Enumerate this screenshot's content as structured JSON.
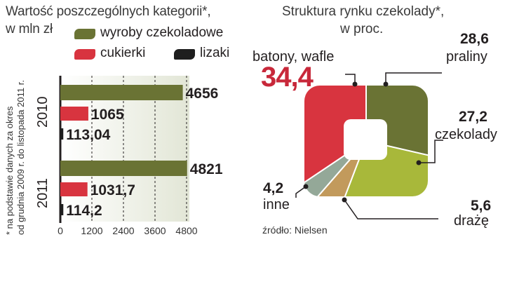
{
  "left": {
    "title_line1": "Wartość poszczególnych kategorii*,",
    "title_line2": "w mln zł",
    "note_line1": "* na podstawie danych za okres",
    "note_line2": "od grudnia 2009 r. do listopada 2011 r.",
    "legend": [
      {
        "name": "wyroby czekoladowe",
        "color": "#6a7334"
      },
      {
        "name": "cukierki",
        "color": "#d8343f"
      },
      {
        "name": "lizaki",
        "color": "#1e1e1e"
      }
    ]
  },
  "right": {
    "title_line1": "Struktura rynku czekolady*,",
    "title_line2": "w proc.",
    "source": "źródło: Nielsen"
  },
  "chart_data": [
    {
      "type": "bar",
      "orientation": "horizontal",
      "title": "Wartość poszczególnych kategorii*, w mln zł",
      "categories": [
        "2010",
        "2011"
      ],
      "series": [
        {
          "name": "wyroby czekoladowe",
          "values": [
            4656,
            4821
          ],
          "labels": [
            "4656",
            "4821"
          ]
        },
        {
          "name": "cukierki",
          "values": [
            1065,
            1031.7
          ],
          "labels": [
            "1065",
            "1031,7"
          ]
        },
        {
          "name": "lizaki",
          "values": [
            113.04,
            114.2
          ],
          "labels": [
            "113,04",
            "114,2"
          ]
        }
      ],
      "xlim": [
        0,
        4800
      ],
      "xticks": [
        "0",
        "1200",
        "2400",
        "3600",
        "4800"
      ],
      "grid": true,
      "legend": "top"
    },
    {
      "type": "pie",
      "title": "Struktura rynku czekolady*, w proc.",
      "slices": [
        {
          "name": "batony, wafle",
          "value": 34.4,
          "label": "34,4",
          "color": "#d8343f"
        },
        {
          "name": "praliny",
          "value": 28.6,
          "label": "28,6",
          "color": "#6a7334"
        },
        {
          "name": "czekolady",
          "value": 27.2,
          "label": "27,2",
          "color": "#a8b83a"
        },
        {
          "name": "drażę",
          "value": 5.6,
          "label": "5,6",
          "color": "#c29a5c"
        },
        {
          "name": "inne",
          "value": 4.2,
          "label": "4,2",
          "color": "#94a898"
        }
      ]
    }
  ]
}
